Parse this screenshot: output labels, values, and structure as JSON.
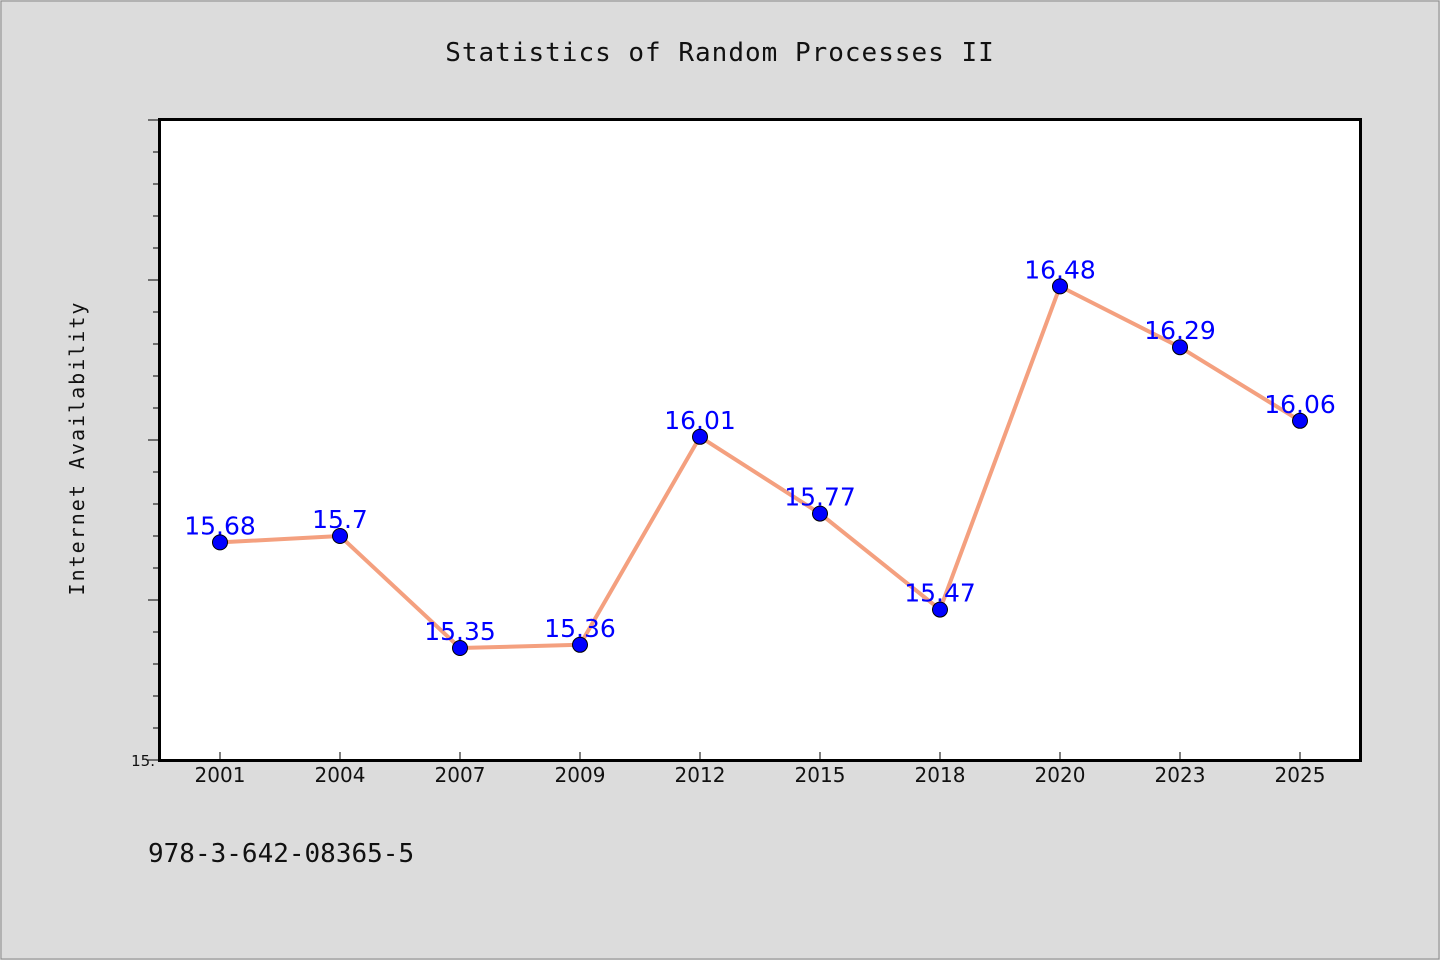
{
  "chart_data": {
    "type": "line",
    "title": "Statistics of Random Processes II",
    "ylabel": "Internet Availability",
    "xlabel": "",
    "categories": [
      "2001",
      "2004",
      "2007",
      "2009",
      "2012",
      "2015",
      "2018",
      "2020",
      "2023",
      "2025"
    ],
    "series": [
      {
        "values": [
          15.68,
          15.7,
          15.35,
          15.36,
          16.01,
          15.77,
          15.47,
          16.48,
          16.29,
          16.06
        ],
        "data_labels": [
          "15.68",
          "15.7",
          "15.35",
          "15.36",
          "16.01",
          "15.77",
          "15.47",
          "16.48",
          "16.29",
          "16.06"
        ]
      }
    ],
    "ylim": [
      15.0,
      17.0
    ],
    "ytick_label": "15.",
    "grid": false,
    "colors": {
      "line": "#f4a07f",
      "marker": "#0000ff",
      "label": "#0000ff",
      "frame": "#000000",
      "plot_bg": "#ffffff",
      "page_bg": "#dcdcdc"
    }
  },
  "footnote": "978-3-642-08365-5"
}
